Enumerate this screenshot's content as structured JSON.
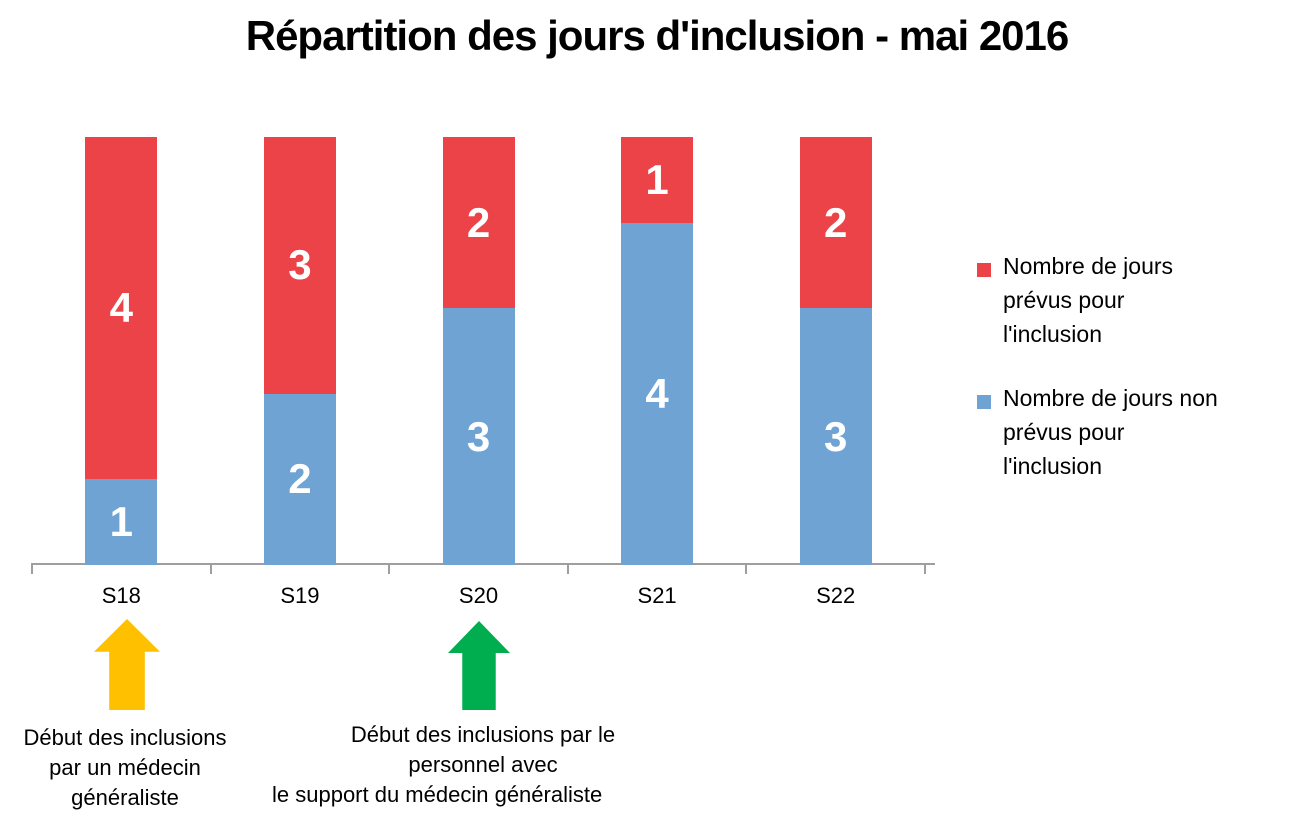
{
  "title": "Répartition des jours d'inclusion - mai 2016",
  "chart_data": {
    "type": "bar",
    "stacked": true,
    "categories": [
      "S18",
      "S19",
      "S20",
      "S21",
      "S22"
    ],
    "series": [
      {
        "name": "Nombre de jours prévus pour l'inclusion",
        "color": "#EC4348",
        "values": [
          4,
          3,
          2,
          1,
          2
        ]
      },
      {
        "name": "Nombre de jours non prévus pour l'inclusion",
        "color": "#6EA3D3",
        "values": [
          1,
          2,
          3,
          4,
          3
        ]
      }
    ],
    "stack_order_bottom_to_top": [
      "Nombre de jours non prévus pour l'inclusion",
      "Nombre de jours prévus pour l'inclusion"
    ],
    "title": "Répartition des jours d'inclusion - mai 2016",
    "xlabel": "",
    "ylabel": "",
    "ylim": [
      0,
      5
    ],
    "grid": false,
    "legend_position": "right",
    "data_labels": true,
    "data_label_color": "#FFFFFF",
    "axis_color": "#9E9E9E"
  },
  "legend": {
    "items": [
      {
        "color": "#EC4348",
        "lines": [
          "Nombre de jours",
          "prévus pour l'inclusion"
        ]
      },
      {
        "color": "#6EA3D3",
        "lines": [
          "Nombre de jours non",
          "prévus pour l'inclusion"
        ]
      }
    ]
  },
  "annotations": [
    {
      "arrow_color": "#FFC000",
      "target_category": "S18",
      "lines": [
        "Début des inclusions",
        "par un médecin",
        "généraliste"
      ]
    },
    {
      "arrow_color": "#00AE50",
      "target_category": "S20",
      "lines": [
        "Début des inclusions par le",
        "personnel avec",
        "le support du médecin généraliste"
      ]
    }
  ]
}
